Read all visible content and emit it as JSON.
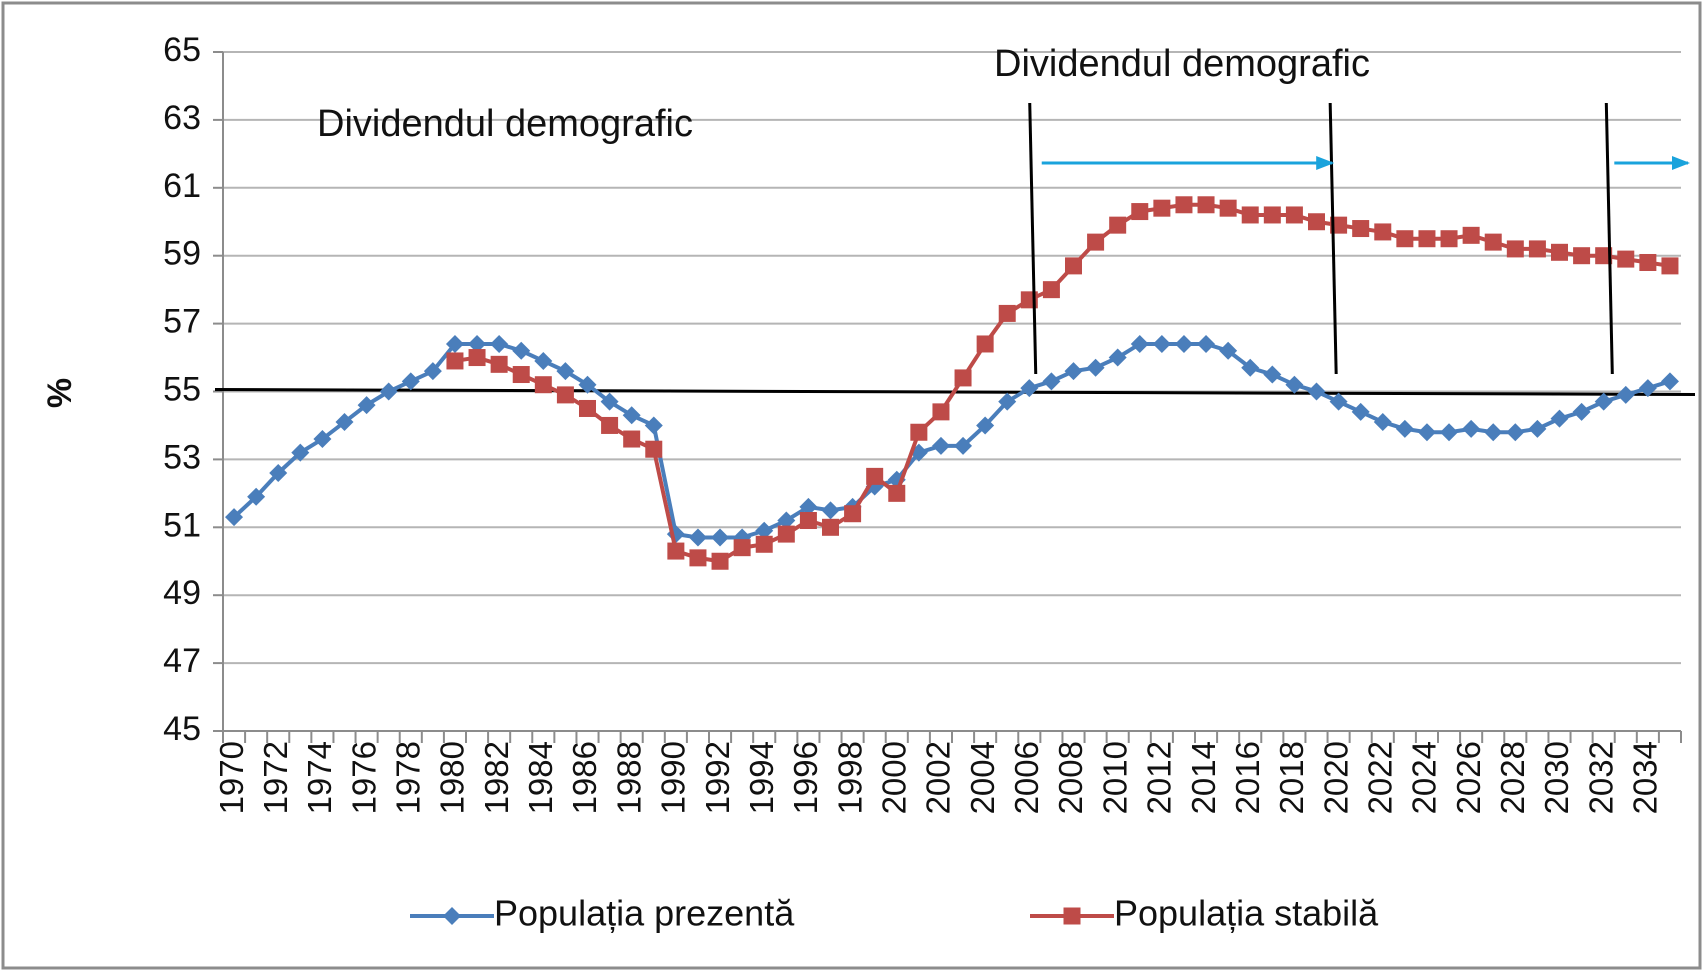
{
  "chart_data": {
    "type": "line",
    "y_label": "%",
    "categories": [
      "1970",
      null,
      "1972",
      null,
      "1974",
      null,
      "1976",
      null,
      "1978",
      null,
      "1980",
      null,
      "1982",
      null,
      "1984",
      null,
      "1986",
      null,
      "1988",
      null,
      "1990",
      null,
      "1992",
      null,
      "1994",
      null,
      "1996",
      null,
      "1998",
      null,
      "2000",
      null,
      "2002",
      null,
      "2004",
      null,
      "2006",
      null,
      "2008",
      null,
      "2010",
      null,
      "2012",
      null,
      "2014",
      null,
      "2016",
      null,
      "2018",
      null,
      "2020",
      null,
      "2022",
      null,
      "2024",
      null,
      "2026",
      null,
      "2028",
      null,
      "2030",
      null,
      "2032",
      null,
      "2034",
      null
    ],
    "series": [
      {
        "name": "Populația prezentă",
        "color": "#4a7ebb",
        "marker": "diamond",
        "values": [
          51.3,
          51.9,
          52.6,
          53.2,
          53.6,
          54.1,
          54.6,
          55.0,
          55.3,
          55.6,
          56.4,
          56.4,
          56.4,
          56.2,
          55.9,
          55.6,
          55.2,
          54.7,
          54.3,
          54.0,
          50.8,
          50.7,
          50.7,
          50.7,
          50.9,
          51.2,
          51.6,
          51.5,
          51.6,
          52.2,
          52.4,
          53.2,
          53.4,
          53.4,
          54.0,
          54.7,
          55.1,
          55.3,
          55.6,
          55.7,
          56.0,
          56.4,
          56.4,
          56.4,
          56.4,
          56.2,
          55.7,
          55.5,
          55.2,
          55.0,
          54.7,
          54.4,
          54.1,
          53.9,
          53.8,
          53.8,
          53.9,
          53.8,
          53.8,
          53.9,
          54.2,
          54.4,
          54.7,
          54.9,
          55.1,
          55.3
        ]
      },
      {
        "name": "Populația stabilă",
        "color": "#be4b48",
        "marker": "square",
        "values": [
          null,
          null,
          null,
          null,
          null,
          null,
          null,
          null,
          null,
          null,
          55.9,
          56.0,
          55.8,
          55.5,
          55.2,
          54.9,
          54.5,
          54.0,
          53.6,
          53.3,
          50.3,
          50.1,
          50.0,
          50.4,
          50.5,
          50.8,
          51.2,
          51.0,
          51.4,
          52.5,
          52.0,
          53.8,
          54.4,
          55.4,
          56.4,
          57.3,
          57.7,
          58.0,
          58.7,
          59.4,
          59.9,
          60.3,
          60.4,
          60.5,
          60.5,
          60.4,
          60.2,
          60.2,
          60.2,
          60.0,
          59.9,
          59.8,
          59.7,
          59.5,
          59.5,
          59.5,
          59.6,
          59.4,
          59.2,
          59.2,
          59.1,
          59.0,
          59.0,
          58.9,
          58.8,
          58.7
        ]
      }
    ],
    "ylim": [
      45,
      65
    ],
    "yticks": [
      45,
      47,
      49,
      51,
      53,
      55,
      57,
      59,
      61,
      63,
      65
    ],
    "grid": true,
    "reference_line": 55,
    "marker_lines": [
      2006.2,
      2019.8,
      2032.3
    ],
    "annotations": [
      "Dividendul demografic",
      "Dividendul demografic"
    ],
    "legend": "bottom"
  }
}
